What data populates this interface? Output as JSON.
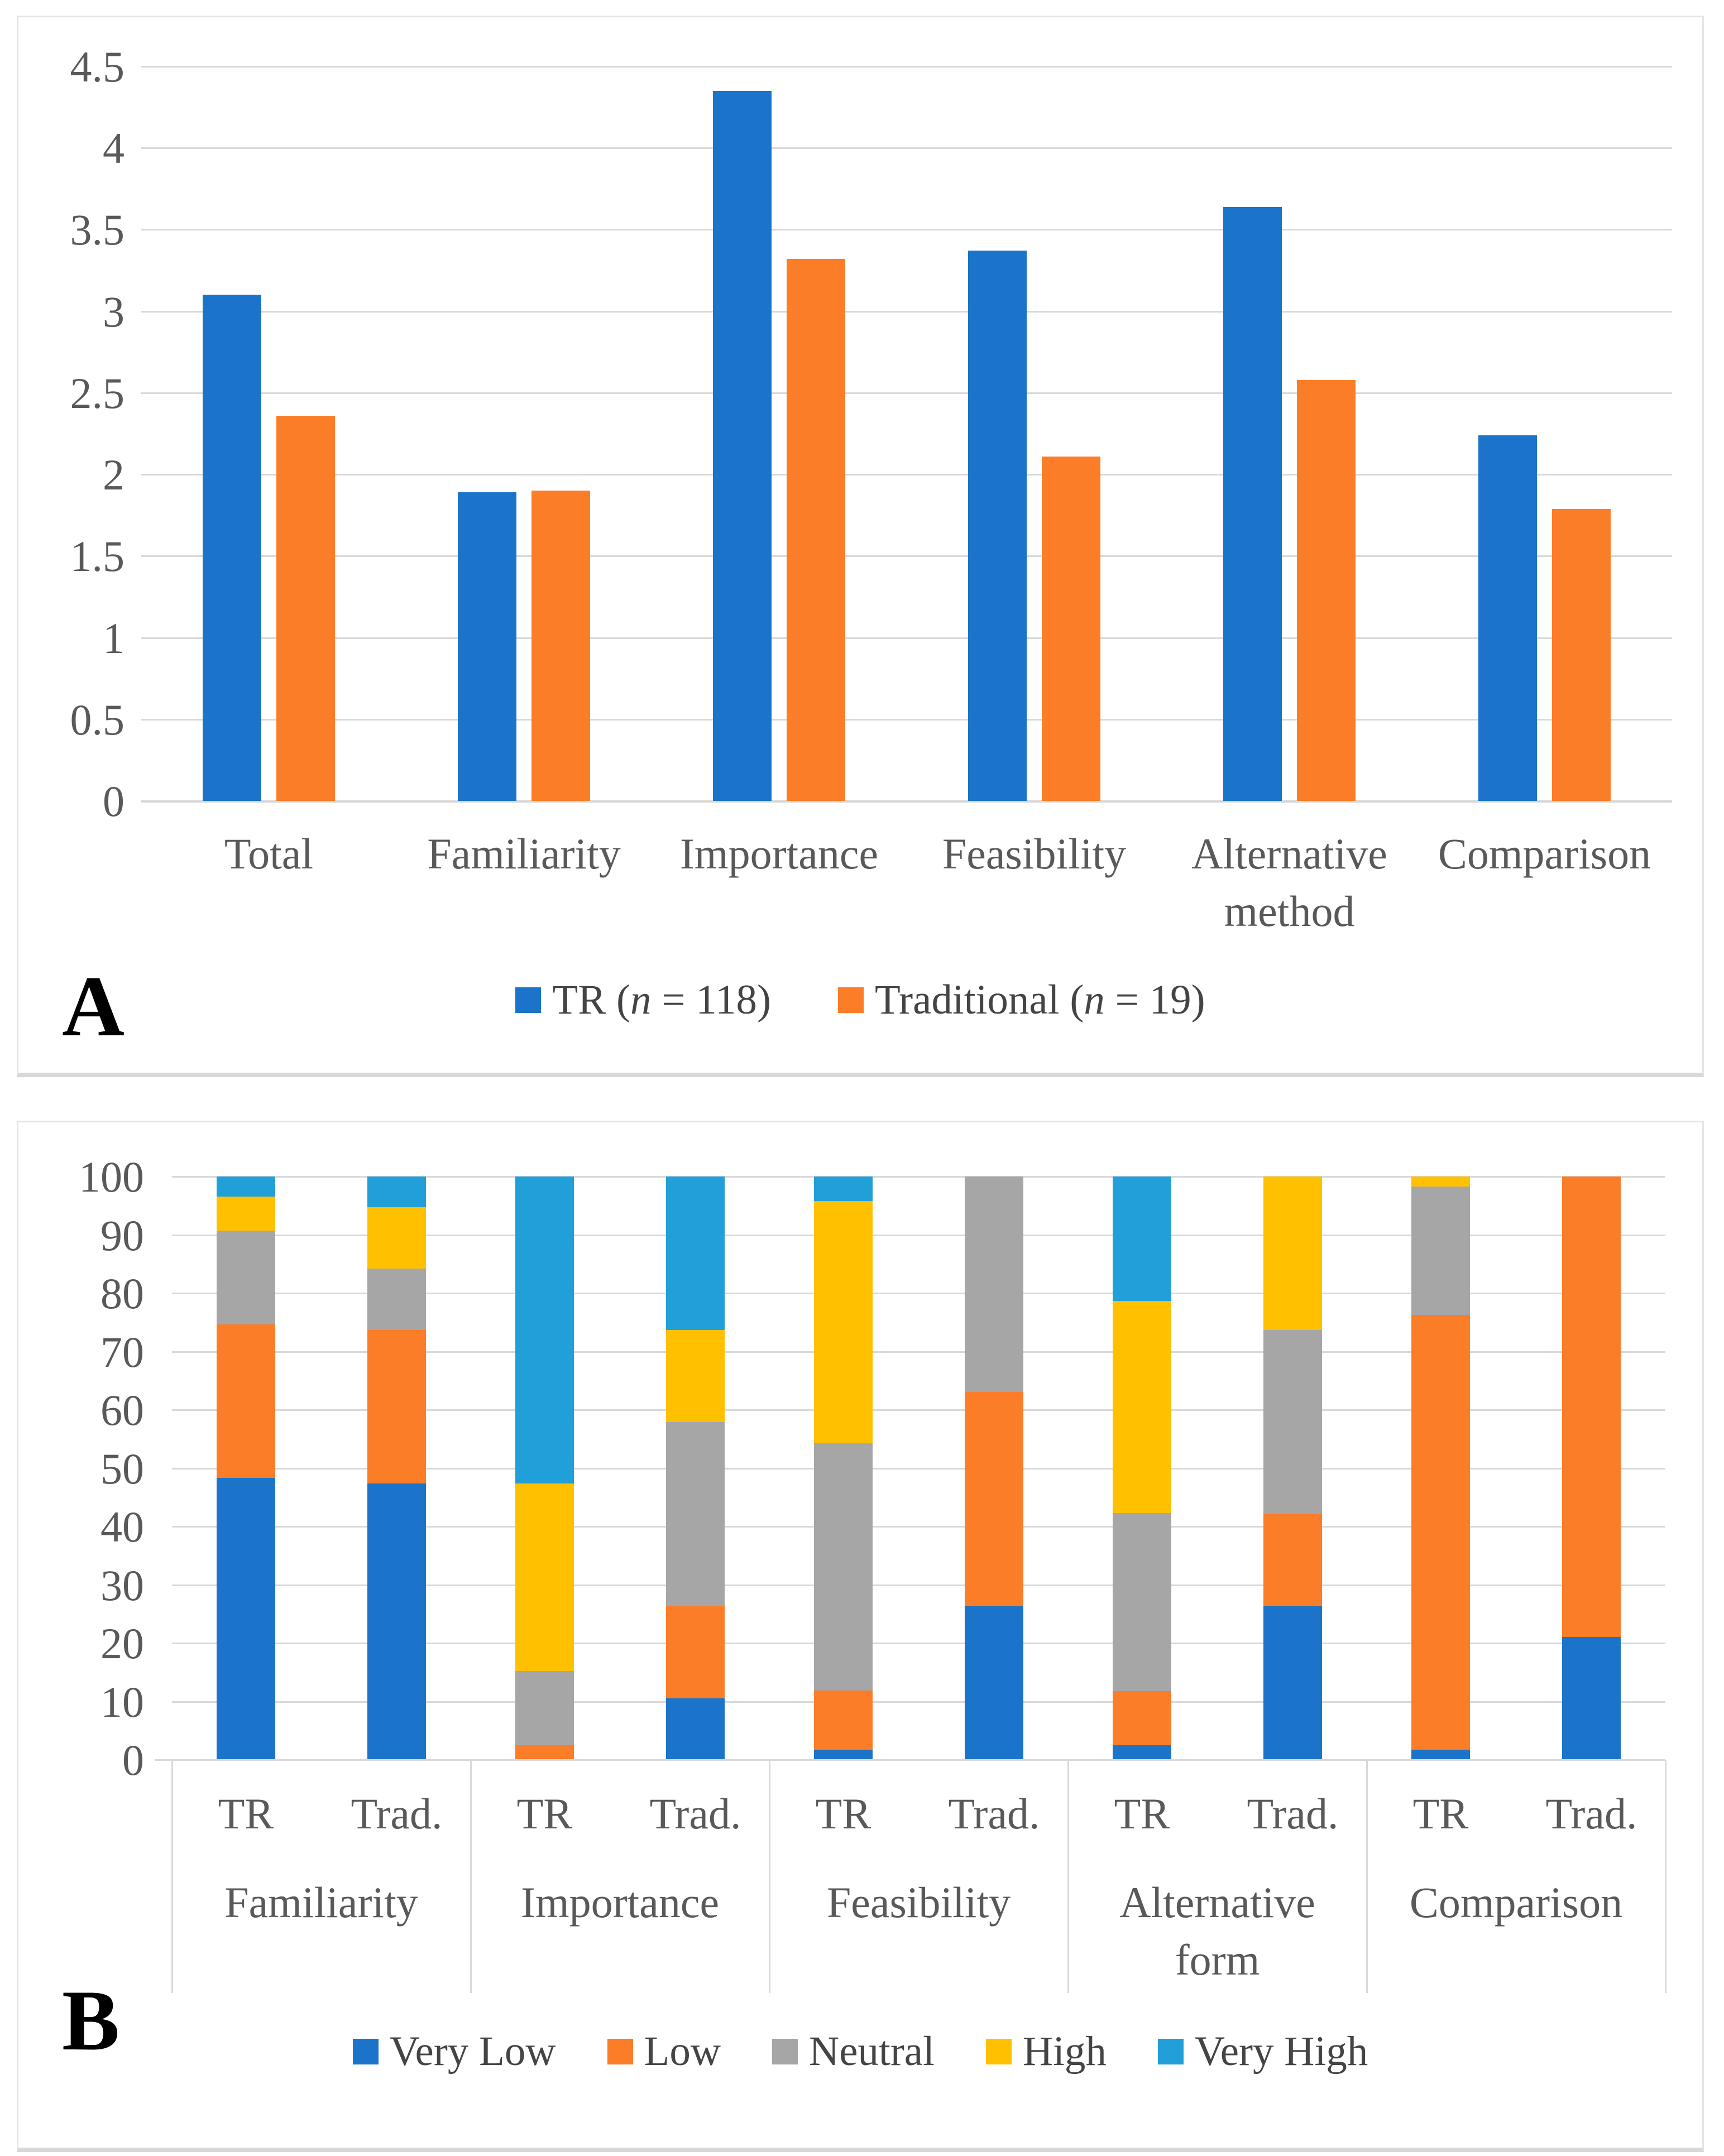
{
  "panel_a": {
    "label": "A",
    "chart_data": {
      "type": "bar",
      "title": "",
      "xlabel": "",
      "ylabel": "",
      "ylim": [
        0,
        4.5
      ],
      "ytick_step": 0.5,
      "yticks": [
        "0",
        "0.5",
        "1",
        "1.5",
        "2",
        "2.5",
        "3",
        "3.5",
        "4",
        "4.5"
      ],
      "grid": "horizontal",
      "legend_position": "bottom",
      "categories": [
        "Total",
        "Familiarity",
        "Importance",
        "Feasibility",
        "Alternative method",
        "Comparison"
      ],
      "series": [
        {
          "name": "TR (n = 118)",
          "name_parts": [
            {
              "t": "TR ("
            },
            {
              "t": "n",
              "i": true
            },
            {
              "t": " = 118)"
            }
          ],
          "color": "#1B74C9",
          "values": [
            3.1,
            1.89,
            4.35,
            3.37,
            3.64,
            2.24
          ]
        },
        {
          "name": "Traditional (n = 19)",
          "name_parts": [
            {
              "t": "Traditional ("
            },
            {
              "t": "n",
              "i": true
            },
            {
              "t": " = 19)"
            }
          ],
          "color": "#FC7D28",
          "values": [
            2.36,
            1.9,
            3.32,
            2.11,
            2.58,
            1.79
          ]
        }
      ]
    }
  },
  "panel_b": {
    "label": "B",
    "chart_data": {
      "type": "stacked-bar-100",
      "title": "",
      "xlabel": "",
      "ylabel": "",
      "ylim": [
        0,
        100
      ],
      "ytick_step": 10,
      "yticks": [
        "0",
        "10",
        "20",
        "30",
        "40",
        "50",
        "60",
        "70",
        "80",
        "90",
        "100"
      ],
      "grid": "horizontal",
      "legend_position": "bottom",
      "series": [
        {
          "name": "Very Low",
          "color": "#1B74C9"
        },
        {
          "name": "Low",
          "color": "#FC7D28"
        },
        {
          "name": "Neutral",
          "color": "#A6A6A6"
        },
        {
          "name": "High",
          "color": "#FFC000"
        },
        {
          "name": "Very High",
          "color": "#219FD8"
        }
      ],
      "groups": [
        {
          "label": "Familiarity",
          "bars": [
            {
              "label": "TR",
              "values": [
                48.3,
                26.3,
                16.1,
                5.9,
                3.4
              ]
            },
            {
              "label": "Trad.",
              "values": [
                47.4,
                26.3,
                10.5,
                10.5,
                5.3
              ]
            }
          ]
        },
        {
          "label": "Importance",
          "bars": [
            {
              "label": "TR",
              "values": [
                0,
                2.5,
                12.7,
                32.2,
                52.6
              ]
            },
            {
              "label": "Trad.",
              "values": [
                10.5,
                15.8,
                31.6,
                15.8,
                26.3
              ]
            }
          ]
        },
        {
          "label": "Feasibility",
          "bars": [
            {
              "label": "TR",
              "values": [
                1.7,
                10.2,
                42.4,
                41.5,
                4.2
              ]
            },
            {
              "label": "Trad.",
              "values": [
                26.3,
                36.8,
                36.9,
                0,
                0
              ]
            }
          ]
        },
        {
          "label": "Alternative form",
          "bars": [
            {
              "label": "TR",
              "values": [
                2.5,
                9.3,
                30.5,
                36.4,
                21.3
              ]
            },
            {
              "label": "Trad.",
              "values": [
                26.3,
                15.8,
                31.6,
                26.3,
                0
              ]
            }
          ]
        },
        {
          "label": "Comparison",
          "bars": [
            {
              "label": "TR",
              "values": [
                1.7,
                74.6,
                22.0,
                1.7,
                0
              ]
            },
            {
              "label": "Trad.",
              "values": [
                21.1,
                78.9,
                0,
                0,
                0
              ]
            }
          ]
        }
      ]
    }
  }
}
